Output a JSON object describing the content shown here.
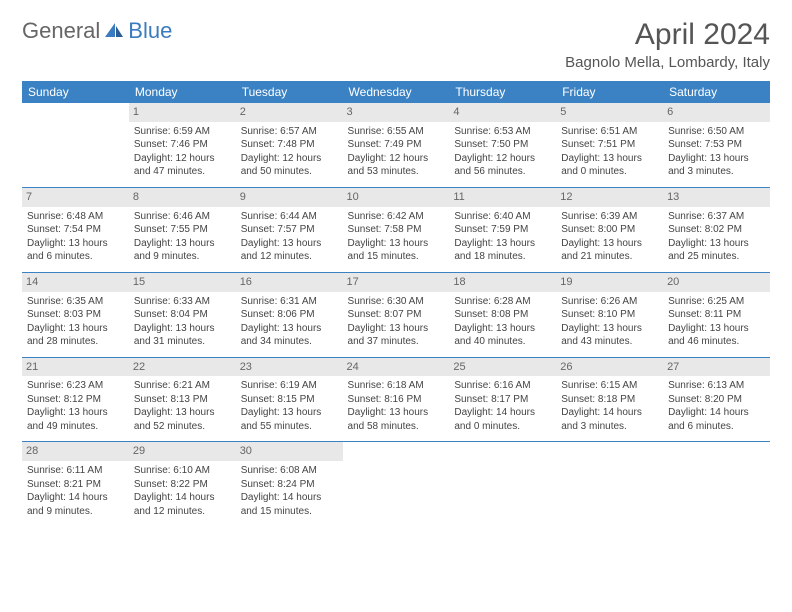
{
  "logo": {
    "general": "General",
    "blue": "Blue"
  },
  "title": "April 2024",
  "location": "Bagnolo Mella, Lombardy, Italy",
  "colors": {
    "header_bg": "#3b82c4",
    "header_text": "#ffffff",
    "daynum_bg": "#e8e8e8",
    "border": "#3b82c4",
    "logo_blue": "#3b7bbf",
    "logo_gray": "#666666"
  },
  "weekdays": [
    "Sunday",
    "Monday",
    "Tuesday",
    "Wednesday",
    "Thursday",
    "Friday",
    "Saturday"
  ],
  "weeks": [
    [
      {
        "day": "",
        "lines": []
      },
      {
        "day": "1",
        "lines": [
          "Sunrise: 6:59 AM",
          "Sunset: 7:46 PM",
          "Daylight: 12 hours",
          "and 47 minutes."
        ]
      },
      {
        "day": "2",
        "lines": [
          "Sunrise: 6:57 AM",
          "Sunset: 7:48 PM",
          "Daylight: 12 hours",
          "and 50 minutes."
        ]
      },
      {
        "day": "3",
        "lines": [
          "Sunrise: 6:55 AM",
          "Sunset: 7:49 PM",
          "Daylight: 12 hours",
          "and 53 minutes."
        ]
      },
      {
        "day": "4",
        "lines": [
          "Sunrise: 6:53 AM",
          "Sunset: 7:50 PM",
          "Daylight: 12 hours",
          "and 56 minutes."
        ]
      },
      {
        "day": "5",
        "lines": [
          "Sunrise: 6:51 AM",
          "Sunset: 7:51 PM",
          "Daylight: 13 hours",
          "and 0 minutes."
        ]
      },
      {
        "day": "6",
        "lines": [
          "Sunrise: 6:50 AM",
          "Sunset: 7:53 PM",
          "Daylight: 13 hours",
          "and 3 minutes."
        ]
      }
    ],
    [
      {
        "day": "7",
        "lines": [
          "Sunrise: 6:48 AM",
          "Sunset: 7:54 PM",
          "Daylight: 13 hours",
          "and 6 minutes."
        ]
      },
      {
        "day": "8",
        "lines": [
          "Sunrise: 6:46 AM",
          "Sunset: 7:55 PM",
          "Daylight: 13 hours",
          "and 9 minutes."
        ]
      },
      {
        "day": "9",
        "lines": [
          "Sunrise: 6:44 AM",
          "Sunset: 7:57 PM",
          "Daylight: 13 hours",
          "and 12 minutes."
        ]
      },
      {
        "day": "10",
        "lines": [
          "Sunrise: 6:42 AM",
          "Sunset: 7:58 PM",
          "Daylight: 13 hours",
          "and 15 minutes."
        ]
      },
      {
        "day": "11",
        "lines": [
          "Sunrise: 6:40 AM",
          "Sunset: 7:59 PM",
          "Daylight: 13 hours",
          "and 18 minutes."
        ]
      },
      {
        "day": "12",
        "lines": [
          "Sunrise: 6:39 AM",
          "Sunset: 8:00 PM",
          "Daylight: 13 hours",
          "and 21 minutes."
        ]
      },
      {
        "day": "13",
        "lines": [
          "Sunrise: 6:37 AM",
          "Sunset: 8:02 PM",
          "Daylight: 13 hours",
          "and 25 minutes."
        ]
      }
    ],
    [
      {
        "day": "14",
        "lines": [
          "Sunrise: 6:35 AM",
          "Sunset: 8:03 PM",
          "Daylight: 13 hours",
          "and 28 minutes."
        ]
      },
      {
        "day": "15",
        "lines": [
          "Sunrise: 6:33 AM",
          "Sunset: 8:04 PM",
          "Daylight: 13 hours",
          "and 31 minutes."
        ]
      },
      {
        "day": "16",
        "lines": [
          "Sunrise: 6:31 AM",
          "Sunset: 8:06 PM",
          "Daylight: 13 hours",
          "and 34 minutes."
        ]
      },
      {
        "day": "17",
        "lines": [
          "Sunrise: 6:30 AM",
          "Sunset: 8:07 PM",
          "Daylight: 13 hours",
          "and 37 minutes."
        ]
      },
      {
        "day": "18",
        "lines": [
          "Sunrise: 6:28 AM",
          "Sunset: 8:08 PM",
          "Daylight: 13 hours",
          "and 40 minutes."
        ]
      },
      {
        "day": "19",
        "lines": [
          "Sunrise: 6:26 AM",
          "Sunset: 8:10 PM",
          "Daylight: 13 hours",
          "and 43 minutes."
        ]
      },
      {
        "day": "20",
        "lines": [
          "Sunrise: 6:25 AM",
          "Sunset: 8:11 PM",
          "Daylight: 13 hours",
          "and 46 minutes."
        ]
      }
    ],
    [
      {
        "day": "21",
        "lines": [
          "Sunrise: 6:23 AM",
          "Sunset: 8:12 PM",
          "Daylight: 13 hours",
          "and 49 minutes."
        ]
      },
      {
        "day": "22",
        "lines": [
          "Sunrise: 6:21 AM",
          "Sunset: 8:13 PM",
          "Daylight: 13 hours",
          "and 52 minutes."
        ]
      },
      {
        "day": "23",
        "lines": [
          "Sunrise: 6:19 AM",
          "Sunset: 8:15 PM",
          "Daylight: 13 hours",
          "and 55 minutes."
        ]
      },
      {
        "day": "24",
        "lines": [
          "Sunrise: 6:18 AM",
          "Sunset: 8:16 PM",
          "Daylight: 13 hours",
          "and 58 minutes."
        ]
      },
      {
        "day": "25",
        "lines": [
          "Sunrise: 6:16 AM",
          "Sunset: 8:17 PM",
          "Daylight: 14 hours",
          "and 0 minutes."
        ]
      },
      {
        "day": "26",
        "lines": [
          "Sunrise: 6:15 AM",
          "Sunset: 8:18 PM",
          "Daylight: 14 hours",
          "and 3 minutes."
        ]
      },
      {
        "day": "27",
        "lines": [
          "Sunrise: 6:13 AM",
          "Sunset: 8:20 PM",
          "Daylight: 14 hours",
          "and 6 minutes."
        ]
      }
    ],
    [
      {
        "day": "28",
        "lines": [
          "Sunrise: 6:11 AM",
          "Sunset: 8:21 PM",
          "Daylight: 14 hours",
          "and 9 minutes."
        ]
      },
      {
        "day": "29",
        "lines": [
          "Sunrise: 6:10 AM",
          "Sunset: 8:22 PM",
          "Daylight: 14 hours",
          "and 12 minutes."
        ]
      },
      {
        "day": "30",
        "lines": [
          "Sunrise: 6:08 AM",
          "Sunset: 8:24 PM",
          "Daylight: 14 hours",
          "and 15 minutes."
        ]
      },
      {
        "day": "",
        "lines": []
      },
      {
        "day": "",
        "lines": []
      },
      {
        "day": "",
        "lines": []
      },
      {
        "day": "",
        "lines": []
      }
    ]
  ]
}
